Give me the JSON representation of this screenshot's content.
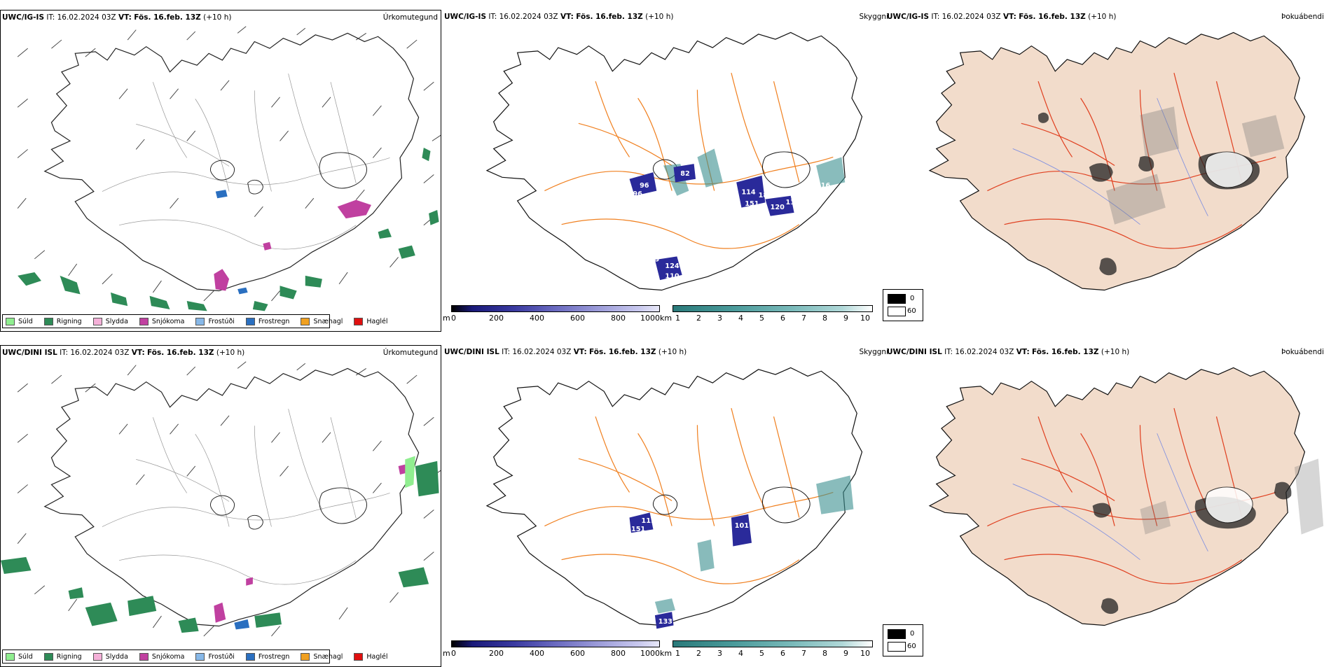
{
  "legend_items": [
    {
      "label": "Súld",
      "color": "#90ee90"
    },
    {
      "label": "Rigning",
      "color": "#2e8b57"
    },
    {
      "label": "Slydda",
      "color": "#f4b0d8"
    },
    {
      "label": "Snjókoma",
      "color": "#c040a0"
    },
    {
      "label": "Frostúði",
      "color": "#87b8e8"
    },
    {
      "label": "Frostregn",
      "color": "#2a6fc0"
    },
    {
      "label": "Snæhagl",
      "color": "#f0a020"
    },
    {
      "label": "Haglél",
      "color": "#e01010"
    }
  ],
  "rows": [
    {
      "model": "UWC/IG-IS",
      "it_label": "IT:",
      "it_value": "16.02.2024 03Z",
      "vt_label": "VT:",
      "vt_value": "Fös. 16.feb. 13Z",
      "lead": "(+10 h)",
      "precip_title": "Úrkomutegund",
      "cloud_title": "Skyggni",
      "fog_title": "Þokuábendi",
      "cloud_labels": [
        "96",
        "82",
        "96",
        "114",
        "185",
        "151",
        "120",
        "113",
        "124",
        "110",
        "55",
        "51",
        "116"
      ]
    },
    {
      "model": "UWC/DINI ISL",
      "it_label": "IT:",
      "it_value": "16.02.2024 03Z",
      "vt_label": "VT:",
      "vt_value": "Fös. 16.feb. 13Z",
      "lead": "(+10 h)",
      "precip_title": "Úrkomutegund",
      "cloud_title": "Skyggni",
      "fog_title": "Þokuábendi",
      "cloud_labels": [
        "111",
        "151",
        "101",
        "133"
      ]
    }
  ],
  "colorbar_m": {
    "unit": "m",
    "ticks": [
      "0",
      "200",
      "400",
      "600",
      "800",
      "1000"
    ]
  },
  "colorbar_km": {
    "unit": "km",
    "ticks": [
      "1",
      "2",
      "3",
      "4",
      "5",
      "6",
      "7",
      "8",
      "9",
      "10"
    ]
  },
  "fog_scale": {
    "ticks": [
      "0",
      "60"
    ]
  },
  "colors": {
    "precip_green": "#2e8b57",
    "snow_magenta": "#c040a0",
    "road_orange": "#f08020",
    "cloud_blue": "#2a2a9a",
    "cloud_teal": "#3a8f8f",
    "land_tan": "#f2dccb",
    "road_red": "#e04020"
  }
}
